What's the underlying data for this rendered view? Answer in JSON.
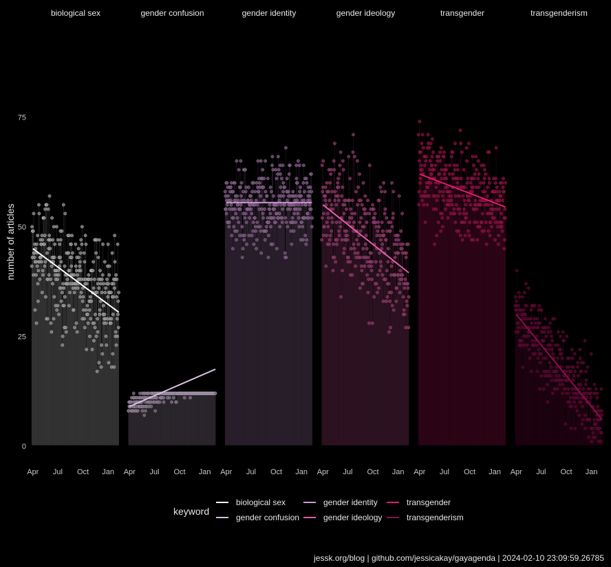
{
  "chart_data": {
    "type": "scatter",
    "ylabel": "number of articles",
    "ylim": [
      -3,
      97
    ],
    "y_ticks": [
      0,
      25,
      50,
      75
    ],
    "x_range": [
      "2023-03-25",
      "2024-02-15"
    ],
    "x_ticks": [
      {
        "date": "2023-04-01",
        "label": "Apr"
      },
      {
        "date": "2023-07-01",
        "label": "Jul"
      },
      {
        "date": "2023-10-01",
        "label": "Oct"
      },
      {
        "date": "2024-01-01",
        "label": "Jan"
      }
    ],
    "grid": false,
    "legend": {
      "title": "keyword",
      "position": "bottom",
      "entries": [
        "biological sex",
        "gender confusion",
        "gender identity",
        "gender ideology",
        "transgender",
        "transgenderism"
      ]
    },
    "series": [
      {
        "name": "biological sex",
        "color": "#ffffff",
        "trend": {
          "start": {
            "date": "2023-04-01",
            "y": 45
          },
          "end": {
            "date": "2024-02-09",
            "y": 30.5
          }
        },
        "level": {
          "min": 5,
          "q1": 25,
          "mid": 36,
          "q3": 46,
          "max": 62
        }
      },
      {
        "name": "gender confusion",
        "color": "#d7c0e0",
        "trend": {
          "start": {
            "date": "2023-04-01",
            "y": 9
          },
          "end": {
            "date": "2024-02-09",
            "y": 17.5
          }
        },
        "level": {
          "min": 1,
          "q1": 3,
          "mid": 5,
          "q3": 7,
          "max": 12
        }
      },
      {
        "name": "gender identity",
        "color": "#d29ad8",
        "trend": {
          "start": {
            "date": "2023-04-01",
            "y": 55.5
          },
          "end": {
            "date": "2024-02-09",
            "y": 55.5
          }
        },
        "level": {
          "min": 38,
          "q1": 48,
          "mid": 55,
          "q3": 63,
          "max": 78
        }
      },
      {
        "name": "gender ideology",
        "color": "#e35ea8",
        "trend": {
          "start": {
            "date": "2023-04-01",
            "y": 55
          },
          "end": {
            "date": "2024-02-09",
            "y": 39.5
          }
        },
        "level": {
          "min": 12,
          "q1": 33,
          "mid": 45,
          "q3": 55,
          "max": 75
        }
      },
      {
        "name": "transgender",
        "color": "#df1c6c",
        "trend": {
          "start": {
            "date": "2023-04-01",
            "y": 62
          },
          "end": {
            "date": "2024-02-09",
            "y": 54.5
          }
        },
        "level": {
          "min": 38,
          "q1": 50,
          "mid": 57,
          "q3": 65,
          "max": 80
        }
      },
      {
        "name": "transgenderism",
        "color": "#8e0c4c",
        "trend": {
          "start": {
            "date": "2023-04-01",
            "y": 30
          },
          "end": {
            "date": "2024-02-09",
            "y": 6
          }
        },
        "level": {
          "min": 1,
          "q1": 8,
          "mid": 14,
          "q3": 22,
          "max": 40
        }
      }
    ]
  },
  "caption": "jessk.org/blog | github.com/jessicakay/gayagenda |  2024-02-10 23:09:59.26785"
}
